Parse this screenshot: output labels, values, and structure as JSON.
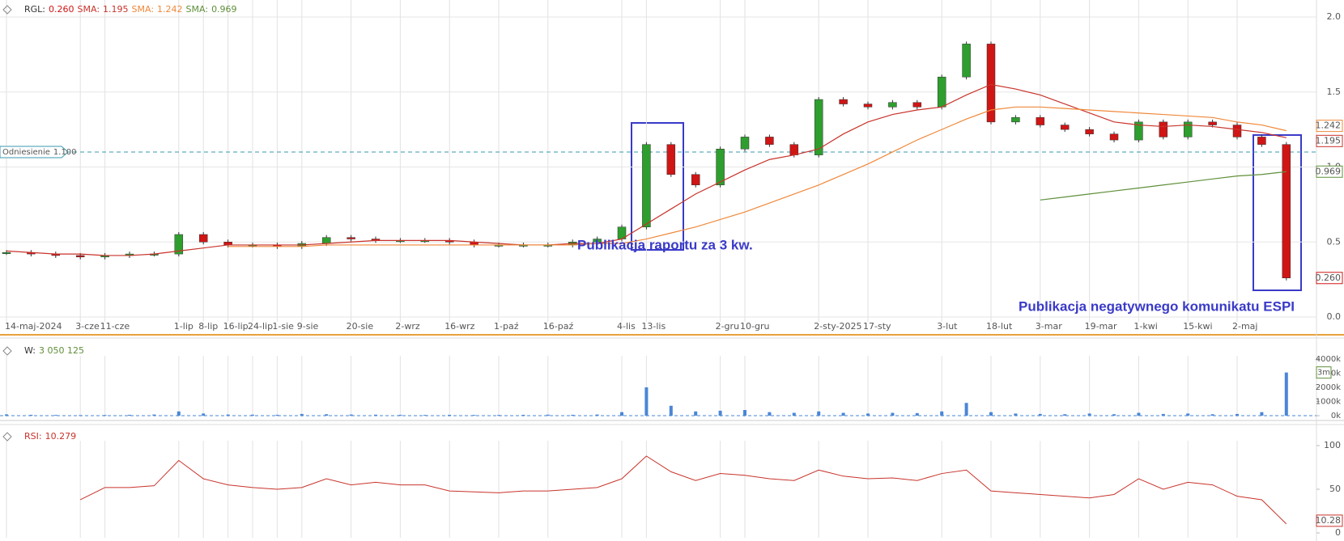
{
  "chart_data": [
    {
      "type": "candlestick",
      "categories": [
        "14-maj-2024",
        null,
        null,
        "3-cze",
        "11-cze",
        null,
        null,
        "1-lip",
        "8-lip",
        "16-lip",
        "24-lip",
        "1-sie",
        "9-sie",
        null,
        "20-sie",
        null,
        "2-wrz",
        null,
        "16-wrz",
        null,
        "1-paź",
        null,
        "16-paź",
        null,
        null,
        "4-lis",
        "13-lis",
        null,
        null,
        "2-gru",
        "10-gru",
        null,
        null,
        "2-sty-2025",
        null,
        "17-sty",
        null,
        null,
        "3-lut",
        null,
        "18-lut",
        null,
        "3-mar",
        null,
        "19-mar",
        null,
        "1-kwi",
        null,
        "15-kwi",
        null,
        "2-maj",
        null,
        null
      ],
      "series": [
        {
          "name": "RGL:",
          "up_color": "#2e9e2e",
          "color": "#d01515",
          "value_label": "0.260",
          "values": [
            0.43,
            0.42,
            0.41,
            0.4,
            0.41,
            0.42,
            0.42,
            0.55,
            0.5,
            0.48,
            0.48,
            0.47,
            0.49,
            0.53,
            0.52,
            0.51,
            0.51,
            0.51,
            0.5,
            0.48,
            0.48,
            0.48,
            0.48,
            0.5,
            0.52,
            0.6,
            1.15,
            0.95,
            0.88,
            1.12,
            1.2,
            1.15,
            1.08,
            1.45,
            1.42,
            1.4,
            1.43,
            1.4,
            1.6,
            1.82,
            1.3,
            1.33,
            1.28,
            1.25,
            1.22,
            1.18,
            1.3,
            1.2,
            1.3,
            1.28,
            1.2,
            1.15,
            0.26
          ]
        },
        {
          "name": "SMA:",
          "color": "#c8332b",
          "value_label": "1.195",
          "values": [
            0.44,
            0.43,
            0.42,
            0.42,
            0.41,
            0.41,
            0.42,
            0.44,
            0.46,
            0.48,
            0.48,
            0.48,
            0.48,
            0.49,
            0.5,
            0.51,
            0.51,
            0.51,
            0.51,
            0.5,
            0.49,
            0.48,
            0.48,
            0.49,
            0.49,
            0.52,
            0.62,
            0.72,
            0.82,
            0.9,
            0.98,
            1.05,
            1.08,
            1.12,
            1.22,
            1.3,
            1.35,
            1.38,
            1.4,
            1.48,
            1.55,
            1.52,
            1.48,
            1.42,
            1.36,
            1.3,
            1.28,
            1.27,
            1.28,
            1.27,
            1.25,
            1.23,
            1.195
          ]
        },
        {
          "name": "SMA:",
          "color": "#f0883a",
          "value_label": "1.242",
          "values": [
            null,
            null,
            null,
            null,
            null,
            null,
            null,
            null,
            null,
            0.47,
            0.47,
            0.47,
            0.47,
            0.48,
            0.48,
            0.48,
            0.48,
            0.48,
            0.48,
            0.48,
            0.48,
            0.48,
            0.48,
            0.48,
            0.49,
            0.49,
            0.52,
            0.56,
            0.6,
            0.65,
            0.7,
            0.76,
            0.82,
            0.88,
            0.95,
            1.02,
            1.1,
            1.18,
            1.25,
            1.32,
            1.38,
            1.4,
            1.4,
            1.39,
            1.38,
            1.37,
            1.36,
            1.35,
            1.34,
            1.33,
            1.3,
            1.28,
            1.242
          ]
        },
        {
          "name": "SMA:",
          "color": "#5f8f3a",
          "value_label": "0.969",
          "values": [
            null,
            null,
            null,
            null,
            null,
            null,
            null,
            null,
            null,
            null,
            null,
            null,
            null,
            null,
            null,
            null,
            null,
            null,
            null,
            null,
            null,
            null,
            null,
            null,
            null,
            null,
            null,
            null,
            null,
            null,
            null,
            null,
            null,
            null,
            null,
            null,
            null,
            null,
            null,
            null,
            null,
            null,
            0.78,
            0.8,
            0.82,
            0.84,
            0.86,
            0.88,
            0.9,
            0.92,
            0.94,
            0.95,
            0.969
          ]
        }
      ],
      "ylim": [
        0,
        2
      ],
      "yticks": [
        {
          "value": 0,
          "label": "0.0"
        },
        {
          "value": 0.5,
          "label": "0.5"
        },
        {
          "value": 1,
          "label": "1.0"
        },
        {
          "value": 1.5,
          "label": "1.5"
        },
        {
          "value": 2,
          "label": "2.0"
        }
      ],
      "reference": {
        "name": "Odniesienie",
        "value": 1.1,
        "label": "1.100"
      },
      "annotations": [
        "Publikacja raportu za 3 kw.",
        "Publikacja negatywnego komunikatu ESPI"
      ]
    },
    {
      "type": "bar",
      "name": "W:",
      "color": "#4a86d6",
      "value_label": "3 050 125",
      "axis_label": "3m",
      "values": [
        90000,
        60000,
        50000,
        40000,
        50000,
        60000,
        80000,
        300000,
        150000,
        80000,
        70000,
        60000,
        120000,
        100000,
        80000,
        70000,
        60000,
        50000,
        60000,
        50000,
        50000,
        60000,
        70000,
        60000,
        80000,
        250000,
        2000000,
        700000,
        300000,
        350000,
        400000,
        250000,
        200000,
        300000,
        200000,
        150000,
        200000,
        180000,
        300000,
        900000,
        250000,
        150000,
        120000,
        100000,
        150000,
        100000,
        200000,
        120000,
        150000,
        100000,
        120000,
        250000,
        3050125
      ],
      "ylim": [
        0,
        4000000
      ],
      "yticks": [
        {
          "value": 0,
          "label": "0k"
        },
        {
          "value": 1000000,
          "label": "1000k"
        },
        {
          "value": 2000000,
          "label": "2000k"
        },
        {
          "value": 3000000,
          "label": "3000k"
        },
        {
          "value": 4000000,
          "label": "4000k"
        }
      ]
    },
    {
      "type": "line",
      "name": "RSI:",
      "color": "#c8332b",
      "value_label": "10.28",
      "values": [
        null,
        null,
        null,
        38,
        52,
        52,
        54,
        83,
        62,
        55,
        52,
        50,
        52,
        62,
        55,
        58,
        55,
        55,
        48,
        47,
        46,
        48,
        48,
        50,
        52,
        62,
        88,
        70,
        60,
        68,
        66,
        62,
        60,
        72,
        65,
        62,
        63,
        60,
        68,
        72,
        48,
        46,
        44,
        42,
        40,
        44,
        62,
        50,
        58,
        55,
        42,
        38,
        10.279
      ],
      "ylim": [
        0,
        100
      ],
      "yticks": [
        0,
        50,
        100
      ]
    }
  ]
}
